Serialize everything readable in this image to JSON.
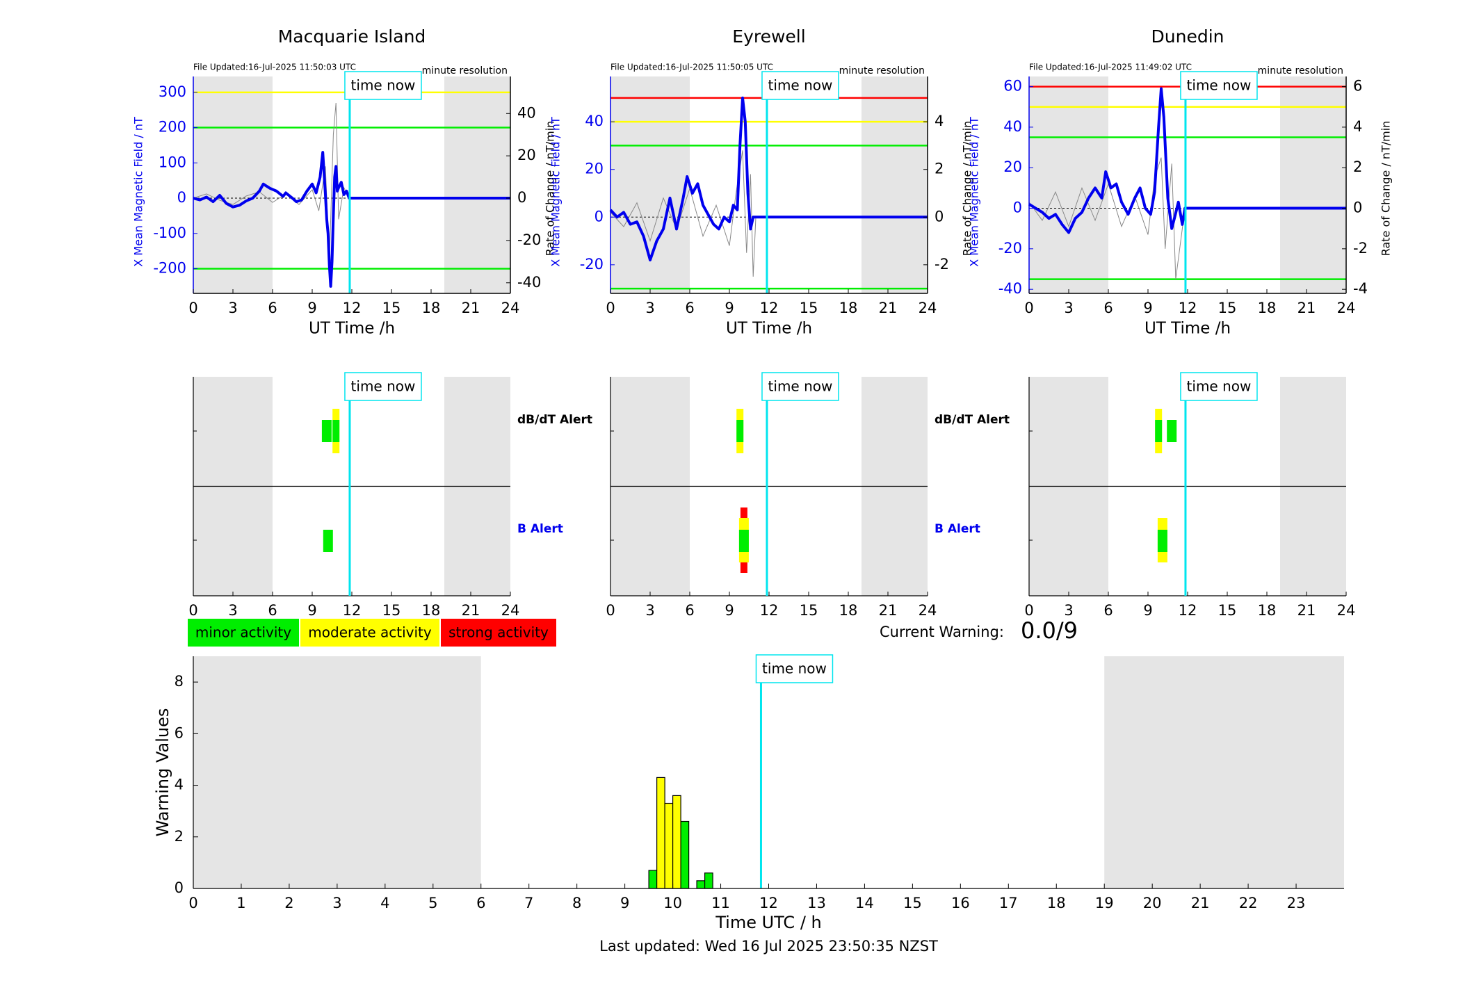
{
  "stations": [
    {
      "name": "Macquarie Island",
      "file_updated": "File Updated:16-Jul-2025 11:50:03 UTC",
      "resolution": "minute resolution",
      "ylabel_left": "X Mean Magnetic Field / nT",
      "ylabel_right": "Rate of Change / nT/min",
      "ylim_left": [
        -270,
        345
      ],
      "yticks_left": [
        -200,
        -100,
        0,
        100,
        200,
        300
      ],
      "ylim_right": [
        -45,
        57.5
      ],
      "yticks_right": [
        -40,
        -20,
        0,
        20,
        40
      ],
      "thresholds": [
        {
          "value": 300,
          "color": "#ffff00"
        },
        {
          "value": 200,
          "color": "#00ee00"
        },
        {
          "value": -200,
          "color": "#00ee00"
        }
      ],
      "b_series": [
        [
          0,
          0
        ],
        [
          0.5,
          -5
        ],
        [
          1,
          3
        ],
        [
          1.5,
          -10
        ],
        [
          2,
          8
        ],
        [
          2.5,
          -15
        ],
        [
          3,
          -25
        ],
        [
          3.5,
          -20
        ],
        [
          4,
          -8
        ],
        [
          4.5,
          0
        ],
        [
          5,
          20
        ],
        [
          5.3,
          40
        ],
        [
          5.8,
          28
        ],
        [
          6.3,
          20
        ],
        [
          6.8,
          5
        ],
        [
          7,
          15
        ],
        [
          7.5,
          0
        ],
        [
          7.8,
          -10
        ],
        [
          8.2,
          -5
        ],
        [
          8.6,
          20
        ],
        [
          9.0,
          40
        ],
        [
          9.3,
          15
        ],
        [
          9.6,
          60
        ],
        [
          9.8,
          130
        ],
        [
          10.0,
          10
        ],
        [
          10.1,
          -60
        ],
        [
          10.2,
          -100
        ],
        [
          10.3,
          -190
        ],
        [
          10.4,
          -250
        ],
        [
          10.5,
          -180
        ],
        [
          10.6,
          -50
        ],
        [
          10.7,
          60
        ],
        [
          10.8,
          90
        ],
        [
          10.9,
          20
        ],
        [
          11.0,
          30
        ],
        [
          11.2,
          45
        ],
        [
          11.4,
          10
        ],
        [
          11.6,
          20
        ],
        [
          11.8,
          0
        ],
        [
          24,
          0
        ]
      ],
      "rate_series": [
        [
          0,
          0
        ],
        [
          1,
          2
        ],
        [
          2,
          -1
        ],
        [
          3,
          -3
        ],
        [
          4,
          1
        ],
        [
          5,
          3
        ],
        [
          6,
          -2
        ],
        [
          7,
          2
        ],
        [
          8,
          -3
        ],
        [
          9,
          4
        ],
        [
          9.5,
          -6
        ],
        [
          10,
          15
        ],
        [
          10.3,
          -30
        ],
        [
          10.6,
          30
        ],
        [
          10.8,
          45
        ],
        [
          11.0,
          -10
        ],
        [
          11.4,
          5
        ],
        [
          11.8,
          0
        ]
      ],
      "alerts": {
        "dbdt": [
          {
            "t": 10.1,
            "level": "minor"
          },
          {
            "t": 10.8,
            "level": "moderate"
          }
        ],
        "b": [
          {
            "t": 10.2,
            "level": "minor"
          }
        ]
      }
    },
    {
      "name": "Eyrewell",
      "file_updated": "File Updated:16-Jul-2025 11:50:05 UTC",
      "resolution": "minute resolution",
      "ylabel_left": "X Mean Magnetic Field / nT",
      "ylabel_right": "Rate of Change / nT/min",
      "ylim_left": [
        -32,
        59
      ],
      "yticks_left": [
        -20,
        0,
        20,
        40
      ],
      "ylim_right": [
        -3.2,
        5.9
      ],
      "yticks_right": [
        -2,
        0,
        2,
        4
      ],
      "thresholds": [
        {
          "value": 50,
          "color": "#ff0000"
        },
        {
          "value": 40,
          "color": "#ffff00"
        },
        {
          "value": 30,
          "color": "#00ee00"
        },
        {
          "value": -30,
          "color": "#00ee00"
        }
      ],
      "b_series": [
        [
          0,
          3
        ],
        [
          0.5,
          0
        ],
        [
          1,
          2
        ],
        [
          1.5,
          -3
        ],
        [
          2,
          -2
        ],
        [
          2.5,
          -8
        ],
        [
          3,
          -18
        ],
        [
          3.5,
          -10
        ],
        [
          4,
          -5
        ],
        [
          4.5,
          8
        ],
        [
          5,
          -5
        ],
        [
          5.5,
          8
        ],
        [
          5.8,
          17
        ],
        [
          6.2,
          10
        ],
        [
          6.6,
          14
        ],
        [
          7,
          5
        ],
        [
          7.5,
          0
        ],
        [
          7.8,
          -3
        ],
        [
          8.2,
          -5
        ],
        [
          8.6,
          0
        ],
        [
          9.0,
          -2
        ],
        [
          9.3,
          5
        ],
        [
          9.6,
          3
        ],
        [
          9.8,
          30
        ],
        [
          10.0,
          50
        ],
        [
          10.2,
          40
        ],
        [
          10.4,
          10
        ],
        [
          10.6,
          -5
        ],
        [
          10.8,
          0
        ],
        [
          11.0,
          0
        ],
        [
          24,
          0
        ]
      ],
      "rate_series": [
        [
          0,
          0.2
        ],
        [
          1,
          -0.4
        ],
        [
          2,
          0.6
        ],
        [
          3,
          -1.0
        ],
        [
          4,
          0.8
        ],
        [
          5,
          -0.5
        ],
        [
          6,
          1.2
        ],
        [
          7,
          -0.8
        ],
        [
          8,
          0.5
        ],
        [
          9,
          -1.2
        ],
        [
          9.5,
          1.0
        ],
        [
          10,
          2.8
        ],
        [
          10.3,
          -1.5
        ],
        [
          10.6,
          1.8
        ],
        [
          10.8,
          -2.5
        ],
        [
          11.0,
          0
        ]
      ],
      "alerts": {
        "dbdt": [
          {
            "t": 9.8,
            "level": "moderate"
          }
        ],
        "b": [
          {
            "t": 10.1,
            "level": "strong"
          }
        ]
      }
    },
    {
      "name": "Dunedin",
      "file_updated": "File Updated:16-Jul-2025 11:49:02 UTC",
      "resolution": "minute resolution",
      "ylabel_left": "X Mean Magnetic Field / nT",
      "ylabel_right": "Rate of Change / nT/min",
      "ylim_left": [
        -42,
        65
      ],
      "yticks_left": [
        -40,
        -20,
        0,
        20,
        40,
        60
      ],
      "ylim_right": [
        -4.2,
        6.5
      ],
      "yticks_right": [
        -4,
        -2,
        0,
        2,
        4,
        6
      ],
      "thresholds": [
        {
          "value": 60,
          "color": "#ff0000"
        },
        {
          "value": 50,
          "color": "#ffff00"
        },
        {
          "value": 35,
          "color": "#00ee00"
        },
        {
          "value": -35,
          "color": "#00ee00"
        }
      ],
      "b_series": [
        [
          0,
          2
        ],
        [
          0.5,
          0
        ],
        [
          1,
          -2
        ],
        [
          1.5,
          -5
        ],
        [
          2,
          -3
        ],
        [
          2.5,
          -8
        ],
        [
          3,
          -12
        ],
        [
          3.5,
          -5
        ],
        [
          4,
          -2
        ],
        [
          4.5,
          5
        ],
        [
          5,
          10
        ],
        [
          5.5,
          5
        ],
        [
          5.8,
          18
        ],
        [
          6.2,
          10
        ],
        [
          6.6,
          12
        ],
        [
          7,
          3
        ],
        [
          7.5,
          -3
        ],
        [
          8.0,
          5
        ],
        [
          8.4,
          10
        ],
        [
          8.8,
          0
        ],
        [
          9.2,
          -3
        ],
        [
          9.5,
          8
        ],
        [
          9.8,
          40
        ],
        [
          10.0,
          59
        ],
        [
          10.2,
          45
        ],
        [
          10.5,
          5
        ],
        [
          10.8,
          -10
        ],
        [
          11.0,
          -5
        ],
        [
          11.3,
          3
        ],
        [
          11.6,
          -8
        ],
        [
          11.8,
          0
        ],
        [
          24,
          0
        ]
      ],
      "rate_series": [
        [
          0,
          0.3
        ],
        [
          1,
          -0.6
        ],
        [
          2,
          0.8
        ],
        [
          3,
          -0.9
        ],
        [
          4,
          1.0
        ],
        [
          5,
          -0.6
        ],
        [
          6,
          1.2
        ],
        [
          7,
          -0.9
        ],
        [
          8,
          0.6
        ],
        [
          9,
          -1.3
        ],
        [
          9.5,
          1.5
        ],
        [
          10,
          2.5
        ],
        [
          10.3,
          -2.0
        ],
        [
          10.8,
          2.2
        ],
        [
          11.1,
          -3.5
        ],
        [
          11.8,
          0
        ]
      ],
      "alerts": {
        "dbdt": [
          {
            "t": 9.8,
            "level": "moderate"
          },
          {
            "t": 10.8,
            "level": "minor"
          }
        ],
        "b": [
          {
            "t": 10.1,
            "level": "moderate"
          }
        ]
      }
    }
  ],
  "xlabel_top": "UT Time /h",
  "xticks_top": [
    0,
    3,
    6,
    9,
    12,
    15,
    18,
    21,
    24
  ],
  "night_shading": [
    [
      0,
      6
    ],
    [
      19,
      24
    ]
  ],
  "time_now": 11.84,
  "time_now_label": "time now",
  "alert_labels": {
    "dbdt": "dB/dT Alert",
    "b": "B Alert"
  },
  "legend": [
    {
      "label": "minor activity",
      "color": "#00ee00"
    },
    {
      "label": "moderate activity",
      "color": "#ffff00"
    },
    {
      "label": "strong activity",
      "color": "#ff0000"
    }
  ],
  "current_warning": {
    "label": "Current Warning:",
    "value": "0.0/9"
  },
  "chart_data": {
    "type": "bar",
    "xlabel": "Time UTC / h",
    "ylabel": "Warning Values",
    "xlim": [
      0,
      24
    ],
    "ylim": [
      0,
      9
    ],
    "xticks": [
      0,
      1,
      2,
      3,
      4,
      5,
      6,
      7,
      8,
      9,
      10,
      11,
      12,
      13,
      14,
      15,
      16,
      17,
      18,
      19,
      20,
      21,
      22,
      23
    ],
    "yticks": [
      0,
      2,
      4,
      6,
      8
    ],
    "bar_width_h": 0.167,
    "bars": [
      {
        "t": 9.5,
        "value": 0.7,
        "color": "#00ee00"
      },
      {
        "t": 9.667,
        "value": 4.3,
        "color": "#ffff00"
      },
      {
        "t": 9.833,
        "value": 3.3,
        "color": "#ffff00"
      },
      {
        "t": 10.0,
        "value": 3.6,
        "color": "#ffff00"
      },
      {
        "t": 10.167,
        "value": 2.6,
        "color": "#00ee00"
      },
      {
        "t": 10.5,
        "value": 0.3,
        "color": "#00ee00"
      },
      {
        "t": 10.667,
        "value": 0.6,
        "color": "#00ee00"
      }
    ]
  },
  "last_updated": "Last updated: Wed 16 Jul 2025 23:50:35 NZST"
}
